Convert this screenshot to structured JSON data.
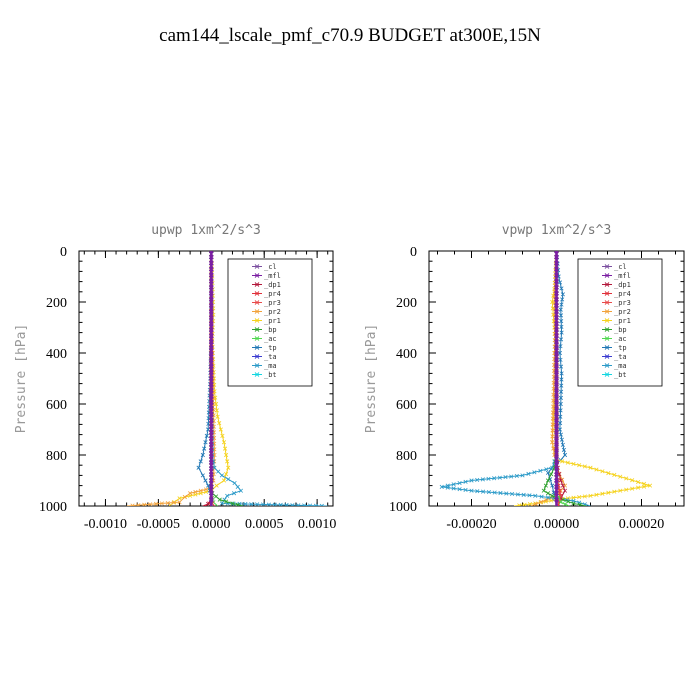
{
  "figure": {
    "title": "cam144_lscale_pmf_c70.9  BUDGET at300E,15N"
  },
  "colors": {
    "cl": "#7b4fa0",
    "mfl": "#7a1fa2",
    "dp1": "#b2183b",
    "pr4": "#e0303a",
    "pr3": "#e84a4a",
    "pr2": "#f2a23b",
    "pr1": "#f5d21c",
    "bp": "#2ca02c",
    "ac": "#4fd94f",
    "tp": "#1f77b4",
    "ta": "#3a3ad0",
    "ma": "#2b9ac8",
    "bt": "#12d6e0"
  },
  "chart_data": [
    {
      "type": "line",
      "title": "upwp  1xm^2/s^3",
      "ylabel": "Pressure [hPa]",
      "xlim": [
        -0.00125,
        0.00115
      ],
      "ylim": [
        1000,
        0
      ],
      "xticks": [
        -0.001,
        -0.0005,
        0.0,
        0.0005,
        0.001
      ],
      "xtick_labels": [
        "-0.0010",
        "-0.0005",
        "0.0000",
        "0.0005",
        "0.0010"
      ],
      "yticks": [
        0,
        200,
        400,
        600,
        800,
        1000
      ],
      "ytick_labels": [
        "0",
        "200",
        "400",
        "600",
        "800",
        "1000"
      ],
      "legend": [
        "_cl",
        "_mfl",
        "_dp1",
        "_pr4",
        "_pr3",
        "_pr2",
        "_pr1",
        "_bp",
        "_ac",
        "_tp",
        "_ta",
        "_ma",
        "_bt"
      ],
      "legend_position": "top-right",
      "series": [
        {
          "name": "_pr1",
          "color_key": "pr1",
          "x": [
            0,
            1e-05,
            2e-05,
            1e-05,
            2e-05,
            3e-05,
            6e-05,
            0.00012,
            0.00016,
            0.00012,
            5e-05,
            0.0,
            -0.0001,
            -0.0003,
            -0.0004
          ],
          "y": [
            0,
            100,
            250,
            350,
            450,
            550,
            650,
            750,
            850,
            900,
            920,
            940,
            950,
            970,
            1000
          ]
        },
        {
          "name": "_pr2",
          "color_key": "pr2",
          "x": [
            0,
            0,
            1e-05,
            2e-05,
            3e-05,
            2e-05,
            0.0,
            -0.0002,
            -0.00025,
            -0.0003,
            -0.0008
          ],
          "y": [
            0,
            200,
            400,
            600,
            800,
            900,
            930,
            950,
            965,
            985,
            1000
          ]
        },
        {
          "name": "_tp",
          "color_key": "tp",
          "x": [
            0,
            0,
            -1e-05,
            -3e-05,
            -8e-05,
            -0.00012,
            -8e-05,
            -3e-05,
            0.0,
            0.0
          ],
          "y": [
            0,
            300,
            500,
            700,
            800,
            850,
            880,
            920,
            960,
            1000
          ]
        },
        {
          "name": "_ma",
          "color_key": "ma",
          "x": [
            0,
            0,
            1e-05,
            3e-05,
            0.0001,
            0.00022,
            0.00028,
            0.00015,
            0.0001,
            0.0011
          ],
          "y": [
            0,
            500,
            800,
            850,
            880,
            910,
            940,
            960,
            990,
            1000
          ]
        },
        {
          "name": "_bp",
          "color_key": "bp",
          "x": [
            0,
            0,
            1e-05,
            8e-05,
            0.0002,
            0.0003
          ],
          "y": [
            0,
            900,
            950,
            975,
            990,
            1000
          ]
        },
        {
          "name": "_ac",
          "color_key": "ac",
          "x": [
            0,
            0,
            2e-05,
            6e-05
          ],
          "y": [
            0,
            950,
            985,
            1000
          ]
        },
        {
          "name": "_pr4",
          "color_key": "pr4",
          "x": [
            0,
            0,
            -2e-05,
            -6e-05
          ],
          "y": [
            0,
            960,
            990,
            1000
          ]
        },
        {
          "name": "_pr3",
          "color_key": "pr3",
          "x": [
            0,
            0,
            1e-05,
            3e-05
          ],
          "y": [
            0,
            960,
            990,
            1000
          ]
        },
        {
          "name": "_dp1",
          "color_key": "dp1",
          "x": [
            0,
            0,
            -3e-05,
            -8e-05
          ],
          "y": [
            0,
            970,
            992,
            1000
          ]
        },
        {
          "name": "_bt",
          "color_key": "bt",
          "x": [
            0,
            0,
            0,
            0
          ],
          "y": [
            0,
            500,
            900,
            1000
          ]
        },
        {
          "name": "_ta",
          "color_key": "ta",
          "x": [
            0,
            0,
            0,
            0
          ],
          "y": [
            0,
            500,
            900,
            1000
          ]
        },
        {
          "name": "_cl",
          "color_key": "cl",
          "x": [
            0,
            0,
            0,
            0
          ],
          "y": [
            0,
            500,
            900,
            1000
          ]
        },
        {
          "name": "_mfl",
          "color_key": "mfl",
          "x": [
            0,
            0,
            0,
            0
          ],
          "y": [
            0,
            500,
            900,
            1000
          ]
        }
      ]
    },
    {
      "type": "line",
      "title": "vpwp  1xm^2/s^3",
      "ylabel": "Pressure [hPa]",
      "xlim": [
        -0.0003,
        0.0003
      ],
      "ylim": [
        1000,
        0
      ],
      "xticks": [
        -0.0002,
        0.0,
        0.0002
      ],
      "xtick_labels": [
        "-0.00020",
        "0.00000",
        "0.00020"
      ],
      "yticks": [
        0,
        200,
        400,
        600,
        800,
        1000
      ],
      "ytick_labels": [
        "0",
        "200",
        "400",
        "600",
        "800",
        "1000"
      ],
      "legend": [
        "_cl",
        "_mfl",
        "_dp1",
        "_pr4",
        "_pr3",
        "_pr2",
        "_pr1",
        "_bp",
        "_ac",
        "_tp",
        "_ta",
        "_ma",
        "_bt"
      ],
      "legend_position": "top-right",
      "series": [
        {
          "name": "_tp",
          "color_key": "tp",
          "x": [
            0,
            5e-06,
            1.5e-05,
            1e-05,
            1.2e-05,
            8e-06,
            1.2e-05,
            1e-05,
            8e-06,
            1.5e-05,
            2e-05,
            1e-05,
            -5e-06,
            -2e-05,
            -1e-05,
            0.0
          ],
          "y": [
            0,
            100,
            170,
            230,
            320,
            400,
            480,
            600,
            700,
            760,
            800,
            820,
            840,
            870,
            920,
            1000
          ]
        },
        {
          "name": "_pr1",
          "color_key": "pr1",
          "x": [
            0,
            -5e-06,
            -1e-05,
            -5e-06,
            -3e-06,
            -2e-06,
            -1e-05,
            0.0,
            8e-05,
            0.00022,
            8e-05,
            0.0,
            -5e-05,
            -0.0001
          ],
          "y": [
            0,
            150,
            200,
            300,
            400,
            500,
            750,
            820,
            850,
            920,
            960,
            975,
            990,
            1000
          ]
        },
        {
          "name": "_pr2",
          "color_key": "pr2",
          "x": [
            0,
            -5e-06,
            -3e-06,
            -5e-06,
            -1e-05,
            0.0,
            2e-05,
            0.0,
            -6e-05
          ],
          "y": [
            0,
            180,
            300,
            400,
            750,
            850,
            920,
            960,
            1000
          ]
        },
        {
          "name": "_ma",
          "color_key": "ma",
          "x": [
            0,
            0,
            -1e-05,
            -8e-05,
            -0.0002,
            -0.00027,
            -0.0002,
            -5e-05,
            4e-05,
            8e-05
          ],
          "y": [
            0,
            800,
            850,
            880,
            900,
            925,
            940,
            960,
            980,
            1000
          ]
        },
        {
          "name": "_bp",
          "color_key": "bp",
          "x": [
            0,
            0,
            -5e-06,
            -2e-05,
            -3e-05,
            -1e-05,
            4e-05,
            7e-05
          ],
          "y": [
            0,
            800,
            850,
            900,
            940,
            960,
            990,
            1000
          ]
        },
        {
          "name": "_dp1",
          "color_key": "dp1",
          "x": [
            0,
            0,
            3e-06,
            1e-05,
            2e-05,
            1e-05,
            5e-06
          ],
          "y": [
            0,
            800,
            850,
            900,
            940,
            970,
            1000
          ]
        },
        {
          "name": "_pr4",
          "color_key": "pr4",
          "x": [
            0,
            0,
            5e-06,
            1e-05,
            5e-06
          ],
          "y": [
            0,
            850,
            920,
            960,
            1000
          ]
        },
        {
          "name": "_pr3",
          "color_key": "pr3",
          "x": [
            0,
            0,
            4e-06,
            8e-06,
            3e-06
          ],
          "y": [
            0,
            850,
            920,
            960,
            1000
          ]
        },
        {
          "name": "_ac",
          "color_key": "ac",
          "x": [
            0,
            0,
            1e-05,
            3e-05
          ],
          "y": [
            0,
            950,
            985,
            1000
          ]
        },
        {
          "name": "_bt",
          "color_key": "bt",
          "x": [
            0,
            0,
            0,
            0
          ],
          "y": [
            0,
            500,
            900,
            1000
          ]
        },
        {
          "name": "_ta",
          "color_key": "ta",
          "x": [
            0,
            0,
            0,
            0
          ],
          "y": [
            0,
            500,
            900,
            1000
          ]
        },
        {
          "name": "_cl",
          "color_key": "cl",
          "x": [
            0,
            0,
            0,
            0
          ],
          "y": [
            0,
            500,
            900,
            1000
          ]
        },
        {
          "name": "_mfl",
          "color_key": "mfl",
          "x": [
            0,
            0,
            0,
            0
          ],
          "y": [
            0,
            500,
            900,
            1000
          ]
        }
      ]
    }
  ]
}
